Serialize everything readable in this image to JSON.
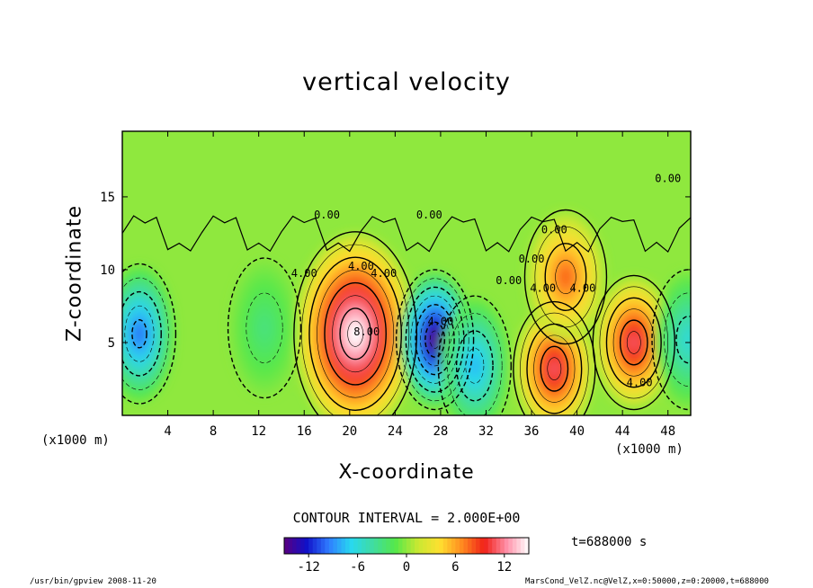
{
  "chart_data": {
    "type": "heatmap",
    "title": "vertical velocity",
    "xlabel": "X-coordinate",
    "ylabel": "Z-coordinate",
    "x_unit": "(x1000 m)",
    "xlim": [
      0,
      50
    ],
    "ylim": [
      0,
      19.5
    ],
    "x_ticks": [
      "4",
      "8",
      "12",
      "16",
      "20",
      "24",
      "28",
      "32",
      "36",
      "40",
      "44",
      "48"
    ],
    "y_ticks": [
      "5",
      "10",
      "15"
    ],
    "contour_interval_label": "CONTOUR INTERVAL = 2.000E+00",
    "contour_labels": [
      "0.00",
      "0.00",
      "0.00",
      "0.00",
      "0.00",
      "0.00",
      "4.00",
      "4.00",
      "4.00",
      "4.00",
      "4.00",
      "4.00",
      "8.00",
      "4.00"
    ],
    "colorbar": {
      "ticks": [
        "-12",
        "-6",
        "0",
        "6",
        "12"
      ],
      "range": [
        -15,
        15
      ],
      "colors": [
        "#5a0080",
        "#1010c8",
        "#2f7cff",
        "#28d8f0",
        "#40dca0",
        "#55e84a",
        "#c8e832",
        "#ffe030",
        "#ff8a20",
        "#f02018",
        "#ff90a8",
        "#ffffff"
      ]
    },
    "features": [
      {
        "kind": "updraft",
        "x": 20.5,
        "z": 5.6,
        "peak": 15
      },
      {
        "kind": "updraft",
        "x": 38.0,
        "z": 3.2,
        "peak": 11
      },
      {
        "kind": "updraft",
        "x": 39.0,
        "z": 9.5,
        "peak": 8
      },
      {
        "kind": "updraft",
        "x": 45.0,
        "z": 5.0,
        "peak": 11
      },
      {
        "kind": "downdraft",
        "x": 27.5,
        "z": 5.2,
        "peak": -15
      },
      {
        "kind": "downdraft",
        "x": 31.0,
        "z": 3.4,
        "peak": -8
      },
      {
        "kind": "downdraft",
        "x": 1.5,
        "z": 5.6,
        "peak": -10
      },
      {
        "kind": "downdraft",
        "x": 12.5,
        "z": 6.0,
        "peak": -3
      },
      {
        "kind": "downdraft",
        "x": 49.8,
        "z": 5.2,
        "peak": -6
      }
    ],
    "time": "t=688000 s"
  },
  "footer": {
    "left": "/usr/bin/gpview   2008-11-20",
    "right": "MarsCond_VelZ.nc@VelZ,x=0:50000,z=0:20000,t=688000"
  },
  "colors": {
    "frame": "#000000",
    "background": "#ffffff"
  }
}
